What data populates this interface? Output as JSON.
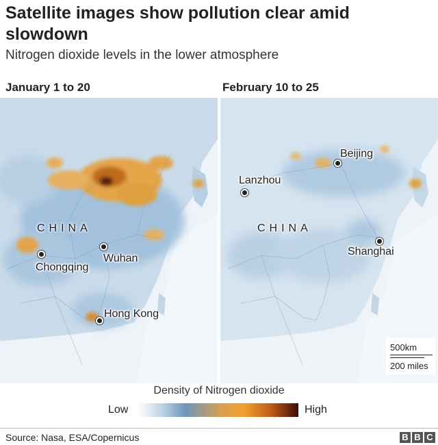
{
  "header": {
    "title": "Satellite images show pollution clear amid slowdown",
    "subtitle": "Nitrogen dioxide levels in the lower atmosphere"
  },
  "panels": [
    {
      "label": "January 1 to 20",
      "country_label": "CHINA",
      "cities": [
        "Chongqing",
        "Wuhan",
        "Hong Kong"
      ]
    },
    {
      "label": "February 10 to 25",
      "country_label": "CHINA",
      "cities": [
        "Lanzhou",
        "Beijing",
        "Shanghai"
      ]
    }
  ],
  "scale": {
    "top": "500km",
    "bottom": "200 miles"
  },
  "legend": {
    "title": "Density of Nitrogen dioxide",
    "low": "Low",
    "high": "High",
    "colors": [
      "#ffffff",
      "#c6d8e8",
      "#6f96bd",
      "#d7a050",
      "#f0a030",
      "#c86018",
      "#3a0e04"
    ]
  },
  "footer": {
    "source": "Source: Nasa, ESA/Copernicus",
    "logo_letters": [
      "B",
      "B",
      "C"
    ]
  }
}
